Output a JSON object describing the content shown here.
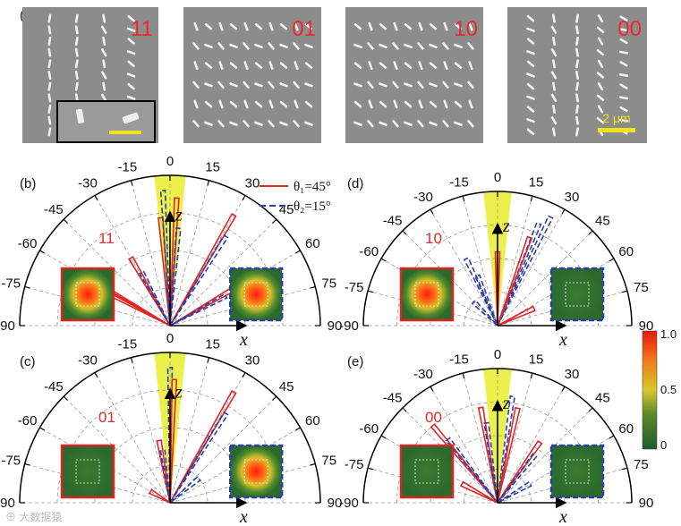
{
  "figure": {
    "panel_a": {
      "label": "(a)",
      "sem_images": [
        {
          "code": "11"
        },
        {
          "code": "01"
        },
        {
          "code": "10"
        },
        {
          "code": "00"
        }
      ],
      "scale_bar": "2 μm"
    },
    "polar_panels": [
      {
        "label": "(b)",
        "code": "11"
      },
      {
        "label": "(d)",
        "code": "10"
      },
      {
        "label": "(c)",
        "code": "01"
      },
      {
        "label": "(e)",
        "code": "00"
      }
    ],
    "angle_ticks": [
      "-90",
      "-75",
      "-60",
      "-45",
      "-30",
      "-15",
      "0",
      "15",
      "30",
      "45",
      "60",
      "75",
      "90"
    ],
    "axis_z": "z",
    "axis_x": "x",
    "legend": {
      "solid": "θ₁=45°",
      "dashed": "θ₂=15°"
    },
    "colorbar": {
      "ticks": [
        "1.0",
        "0.5",
        "0"
      ]
    },
    "colors": {
      "solid_line": "#e02424",
      "dashed_line": "#2a3fa8",
      "code_text": "#e8282a",
      "cone": "#e8ee2a",
      "sem_bg": "#8a8a8a"
    },
    "watermark": "⊕ 大数据猿"
  }
}
